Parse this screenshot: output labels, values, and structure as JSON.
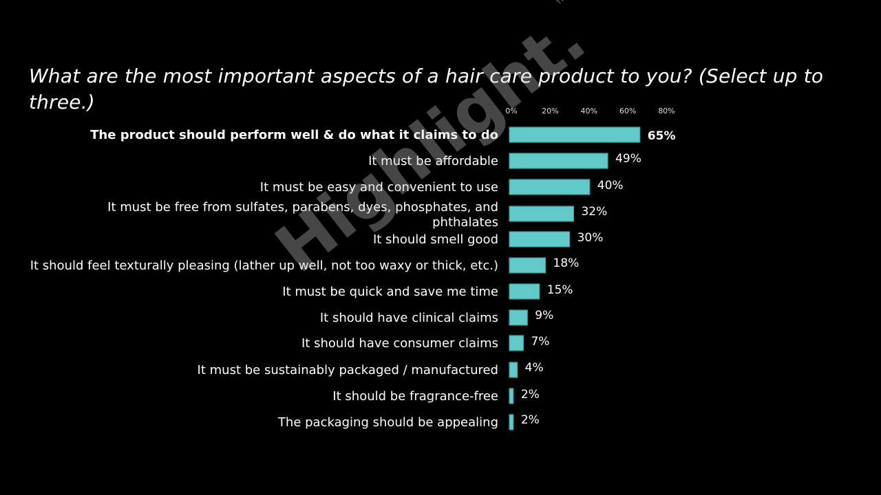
{
  "title": "What are the most important aspects of a hair care product to you? (Select up to three.)",
  "watermark": "Highlight.™",
  "chart_data": {
    "type": "bar",
    "orientation": "horizontal",
    "title": "What are the most important aspects of a hair care product to you? (Select up to three.)",
    "categories": [
      "The product should perform well & do what it claims to do",
      "It must be affordable",
      "It must be easy and convenient to use",
      "It must be free from sulfates, parabens, dyes, phosphates, and phthalates",
      "It should smell good",
      "It should feel texturally pleasing (lather up well, not too waxy or thick, etc.)",
      "It must be quick and save me time",
      "It should have clinical claims",
      "It should have consumer claims",
      "It must be sustainably packaged / manufactured",
      "It should be fragrance-free",
      "The packaging should be appealing"
    ],
    "values": [
      65,
      49,
      40,
      32,
      30,
      18,
      15,
      9,
      7,
      4,
      2,
      2
    ],
    "data_labels": [
      "65%",
      "49%",
      "40%",
      "32%",
      "30%",
      "18%",
      "15%",
      "9%",
      "7%",
      "4%",
      "2%",
      "2%"
    ],
    "xlim": [
      0,
      80
    ],
    "xticks": [
      "0%",
      "20%",
      "40%",
      "60%",
      "80%"
    ],
    "axis_position": "top",
    "grid": false,
    "highlighted_category_index": 0,
    "bar_color": "#62c9c9",
    "background": "#000000"
  }
}
